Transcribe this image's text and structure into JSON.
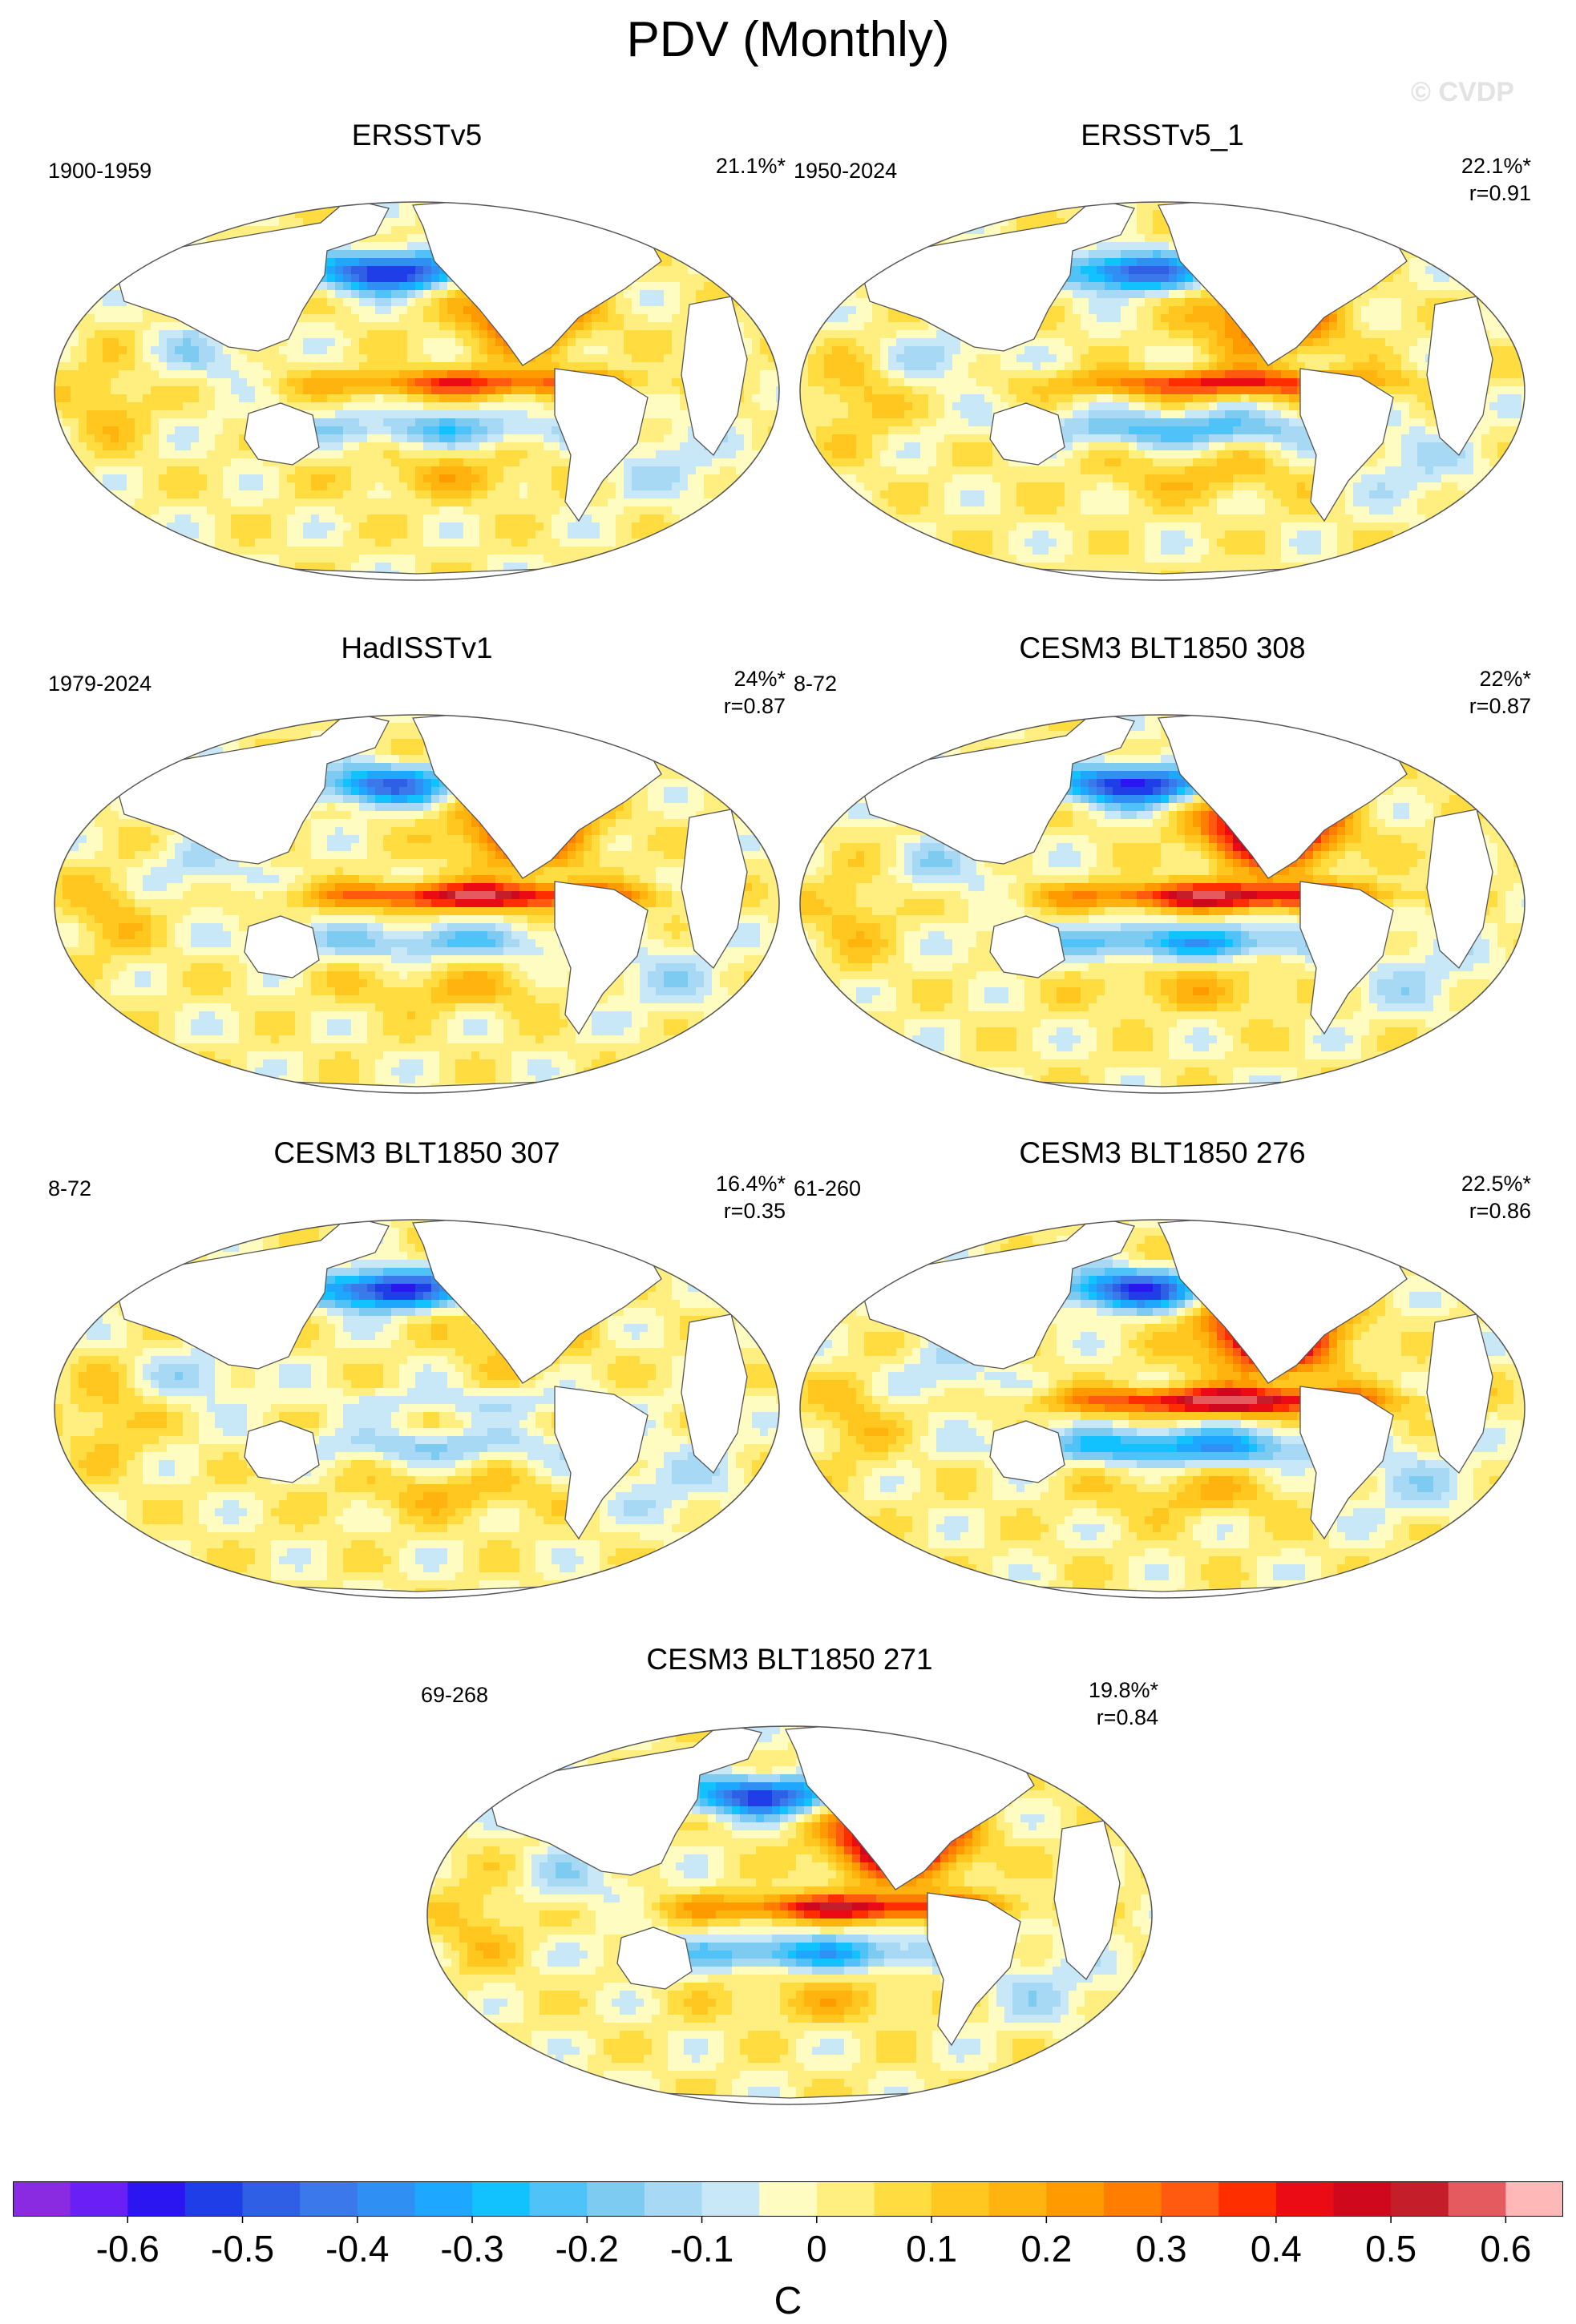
{
  "page": {
    "title": "PDV (Monthly)",
    "watermark": "© CVDP"
  },
  "chart_data": [
    {
      "type": "heatmap",
      "name": "ERSSTv5",
      "title": "ERSSTv5",
      "period": "1900-1959",
      "variance": "21.1%*",
      "correlation": "",
      "projection": "Robinson (Pacific-centred)",
      "color_limits": [
        -0.65,
        0.65
      ],
      "units": "C",
      "features": {
        "north_pacific_min": -0.6,
        "subtropical_pacific_max": 0.35,
        "tropical_pacific_max": 0.35,
        "sh_pacific_min": -0.2
      }
    },
    {
      "type": "heatmap",
      "name": "ERSSTv5_1",
      "title": "ERSSTv5_1",
      "period": "1950-2024",
      "variance": "22.1%*",
      "correlation": "r=0.91",
      "projection": "Robinson (Pacific-centred)",
      "color_limits": [
        -0.65,
        0.65
      ],
      "units": "C",
      "features": {
        "north_pacific_min": -0.5,
        "subtropical_pacific_max": 0.4,
        "tropical_pacific_max": 0.4,
        "sh_pacific_min": -0.25
      }
    },
    {
      "type": "heatmap",
      "name": "HadISSTv1",
      "title": "HadISSTv1",
      "period": "1979-2024",
      "variance": "24%*",
      "correlation": "r=0.87",
      "projection": "Robinson (Pacific-centred)",
      "color_limits": [
        -0.65,
        0.65
      ],
      "units": "C",
      "features": {
        "north_pacific_min": -0.45,
        "subtropical_pacific_max": 0.45,
        "tropical_pacific_max": 0.5,
        "sh_pacific_min": -0.2
      }
    },
    {
      "type": "heatmap",
      "name": "CESM3 BLT1850 308",
      "title": "CESM3 BLT1850 308",
      "period": "8-72",
      "variance": "22%*",
      "correlation": "r=0.87",
      "projection": "Robinson (Pacific-centred)",
      "color_limits": [
        -0.65,
        0.65
      ],
      "units": "C",
      "features": {
        "north_pacific_min": -0.6,
        "subtropical_pacific_max": 0.65,
        "tropical_pacific_max": 0.5,
        "sh_pacific_min": -0.3
      }
    },
    {
      "type": "heatmap",
      "name": "CESM3 BLT1850 307",
      "title": "CESM3 BLT1850 307",
      "period": "8-72",
      "variance": "16.4%*",
      "correlation": "r=0.35",
      "projection": "Robinson (Pacific-centred)",
      "color_limits": [
        -0.65,
        0.65
      ],
      "units": "C",
      "features": {
        "north_pacific_min": -0.6,
        "subtropical_pacific_max": 0.15,
        "tropical_pacific_max": -0.1,
        "sh_pacific_min": -0.15
      }
    },
    {
      "type": "heatmap",
      "name": "CESM3 BLT1850 276",
      "title": "CESM3 BLT1850 276",
      "period": "61-260",
      "variance": "22.5%*",
      "correlation": "r=0.86",
      "projection": "Robinson (Pacific-centred)",
      "color_limits": [
        -0.65,
        0.65
      ],
      "units": "C",
      "features": {
        "north_pacific_min": -0.55,
        "subtropical_pacific_max": 0.65,
        "tropical_pacific_max": 0.55,
        "sh_pacific_min": -0.35
      }
    },
    {
      "type": "heatmap",
      "name": "CESM3 BLT1850 271",
      "title": "CESM3 BLT1850 271",
      "period": "69-268",
      "variance": "19.8%*",
      "correlation": "r=0.84",
      "projection": "Robinson (Pacific-centred)",
      "color_limits": [
        -0.65,
        0.65
      ],
      "units": "C",
      "features": {
        "north_pacific_min": -0.55,
        "subtropical_pacific_max": 0.65,
        "tropical_pacific_max": 0.45,
        "sh_pacific_min": -0.3
      }
    }
  ],
  "colorbar": {
    "label": "C",
    "ticks": [
      "-0.6",
      "-0.5",
      "-0.4",
      "-0.3",
      "-0.2",
      "-0.1",
      "0",
      "0.1",
      "0.2",
      "0.3",
      "0.4",
      "0.5",
      "0.6"
    ],
    "levels": [
      -0.65,
      -0.6,
      -0.55,
      -0.5,
      -0.45,
      -0.4,
      -0.35,
      -0.3,
      -0.25,
      -0.2,
      -0.15,
      -0.1,
      -0.05,
      0,
      0.05,
      0.1,
      0.15,
      0.2,
      0.25,
      0.3,
      0.35,
      0.4,
      0.45,
      0.5,
      0.55,
      0.6,
      0.65
    ],
    "colors": [
      "#8a2be2",
      "#6a1ff5",
      "#2b16f2",
      "#1f3ee8",
      "#2e5fe5",
      "#3b78ea",
      "#2f8ff2",
      "#1ea7ff",
      "#12c2ff",
      "#4fc3f7",
      "#7ecbf2",
      "#a8d9f4",
      "#c9e8f7",
      "#fffcc2",
      "#ffef80",
      "#ffdd40",
      "#ffc71f",
      "#ffb30f",
      "#ff9a00",
      "#ff7d00",
      "#ff5a10",
      "#ff2e00",
      "#ea0b14",
      "#d0081e",
      "#c41e2a",
      "#e55a5f",
      "#ffb8b8"
    ]
  }
}
